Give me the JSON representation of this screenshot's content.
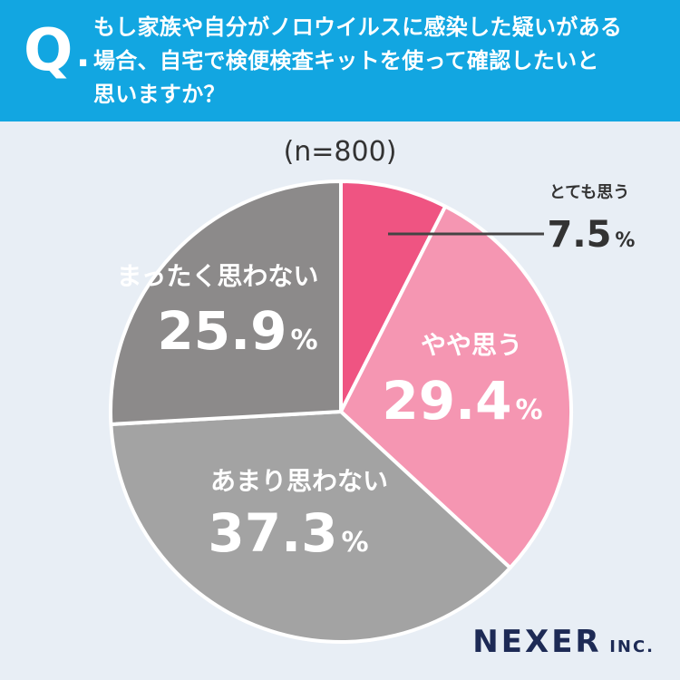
{
  "header": {
    "q_mark": "Q",
    "q_dot": ".",
    "question_lines": [
      "もし家族や自分がノロウイルスに感染した疑いがある",
      "場合、自宅で検便検査キットを使って確認したいと",
      "思いますか？"
    ]
  },
  "sample_size": "(n=800)",
  "logo": {
    "main": "NEXER",
    "sub": "INC."
  },
  "colors": {
    "header_bg": "#12a6e1",
    "page_bg": "#e8eef5",
    "slice_1": "#ef5482",
    "slice_2": "#f596b2",
    "slice_3": "#a3a3a3",
    "slice_4": "#8c8a8a",
    "leader_line": "#444444"
  },
  "chart_data": {
    "type": "pie",
    "start_angle_deg": 0,
    "direction": "clockwise",
    "slices": [
      {
        "label": "とても思う",
        "value": 7.5,
        "value_text": "7.5",
        "unit": "%"
      },
      {
        "label": "やや思う",
        "value": 29.4,
        "value_text": "29.4",
        "unit": "%"
      },
      {
        "label": "あまり思わない",
        "value": 37.3,
        "value_text": "37.3",
        "unit": "%"
      },
      {
        "label": "まったく思わない",
        "value": 25.9,
        "value_text": "25.9",
        "unit": "%"
      }
    ]
  }
}
